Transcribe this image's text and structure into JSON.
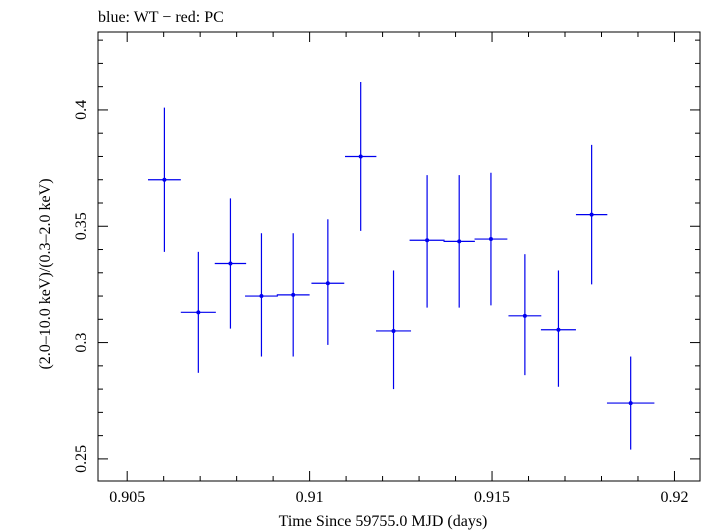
{
  "chart_data": {
    "type": "scatter",
    "title": "blue: WT − red: PC",
    "xlabel": "Time Since 59755.0 MJD (days)",
    "ylabel": "(2.0–10.0 keV)/(0.3–2.0 keV)",
    "xlim": [
      0.9042,
      0.9207
    ],
    "ylim": [
      0.2405,
      0.4335
    ],
    "x_ticks": [
      0.905,
      0.91,
      0.915,
      0.92
    ],
    "x_tick_labels": [
      "0.905",
      "0.91",
      "0.915",
      "0.92"
    ],
    "y_ticks": [
      0.25,
      0.3,
      0.35,
      0.4
    ],
    "y_tick_labels": [
      "0.25",
      "0.3",
      "0.35",
      "0.4"
    ],
    "grid": false,
    "series": [
      {
        "name": "WT",
        "color": "#0000ee",
        "points": [
          {
            "x": 0.90602,
            "xerr": 0.00045,
            "y": 0.37,
            "ylo": 0.339,
            "yhi": 0.401
          },
          {
            "x": 0.90695,
            "xerr": 0.00048,
            "y": 0.313,
            "ylo": 0.287,
            "yhi": 0.339
          },
          {
            "x": 0.90783,
            "xerr": 0.00043,
            "y": 0.334,
            "ylo": 0.306,
            "yhi": 0.362
          },
          {
            "x": 0.90868,
            "xerr": 0.00045,
            "y": 0.32,
            "ylo": 0.294,
            "yhi": 0.347
          },
          {
            "x": 0.90955,
            "xerr": 0.00045,
            "y": 0.3205,
            "ylo": 0.294,
            "yhi": 0.347
          },
          {
            "x": 0.9105,
            "xerr": 0.00045,
            "y": 0.3255,
            "ylo": 0.299,
            "yhi": 0.353
          },
          {
            "x": 0.9114,
            "xerr": 0.00043,
            "y": 0.38,
            "ylo": 0.348,
            "yhi": 0.412
          },
          {
            "x": 0.9123,
            "xerr": 0.00048,
            "y": 0.305,
            "ylo": 0.28,
            "yhi": 0.331
          },
          {
            "x": 0.91322,
            "xerr": 0.00048,
            "y": 0.344,
            "ylo": 0.315,
            "yhi": 0.372
          },
          {
            "x": 0.9141,
            "xerr": 0.00043,
            "y": 0.3435,
            "ylo": 0.315,
            "yhi": 0.372
          },
          {
            "x": 0.91497,
            "xerr": 0.00045,
            "y": 0.3445,
            "ylo": 0.316,
            "yhi": 0.373
          },
          {
            "x": 0.9159,
            "xerr": 0.00045,
            "y": 0.3115,
            "ylo": 0.286,
            "yhi": 0.338
          },
          {
            "x": 0.91682,
            "xerr": 0.00048,
            "y": 0.3055,
            "ylo": 0.281,
            "yhi": 0.331
          },
          {
            "x": 0.91773,
            "xerr": 0.00043,
            "y": 0.355,
            "ylo": 0.325,
            "yhi": 0.385
          },
          {
            "x": 0.9188,
            "xerr": 0.00065,
            "y": 0.274,
            "ylo": 0.254,
            "yhi": 0.294
          }
        ]
      }
    ]
  }
}
